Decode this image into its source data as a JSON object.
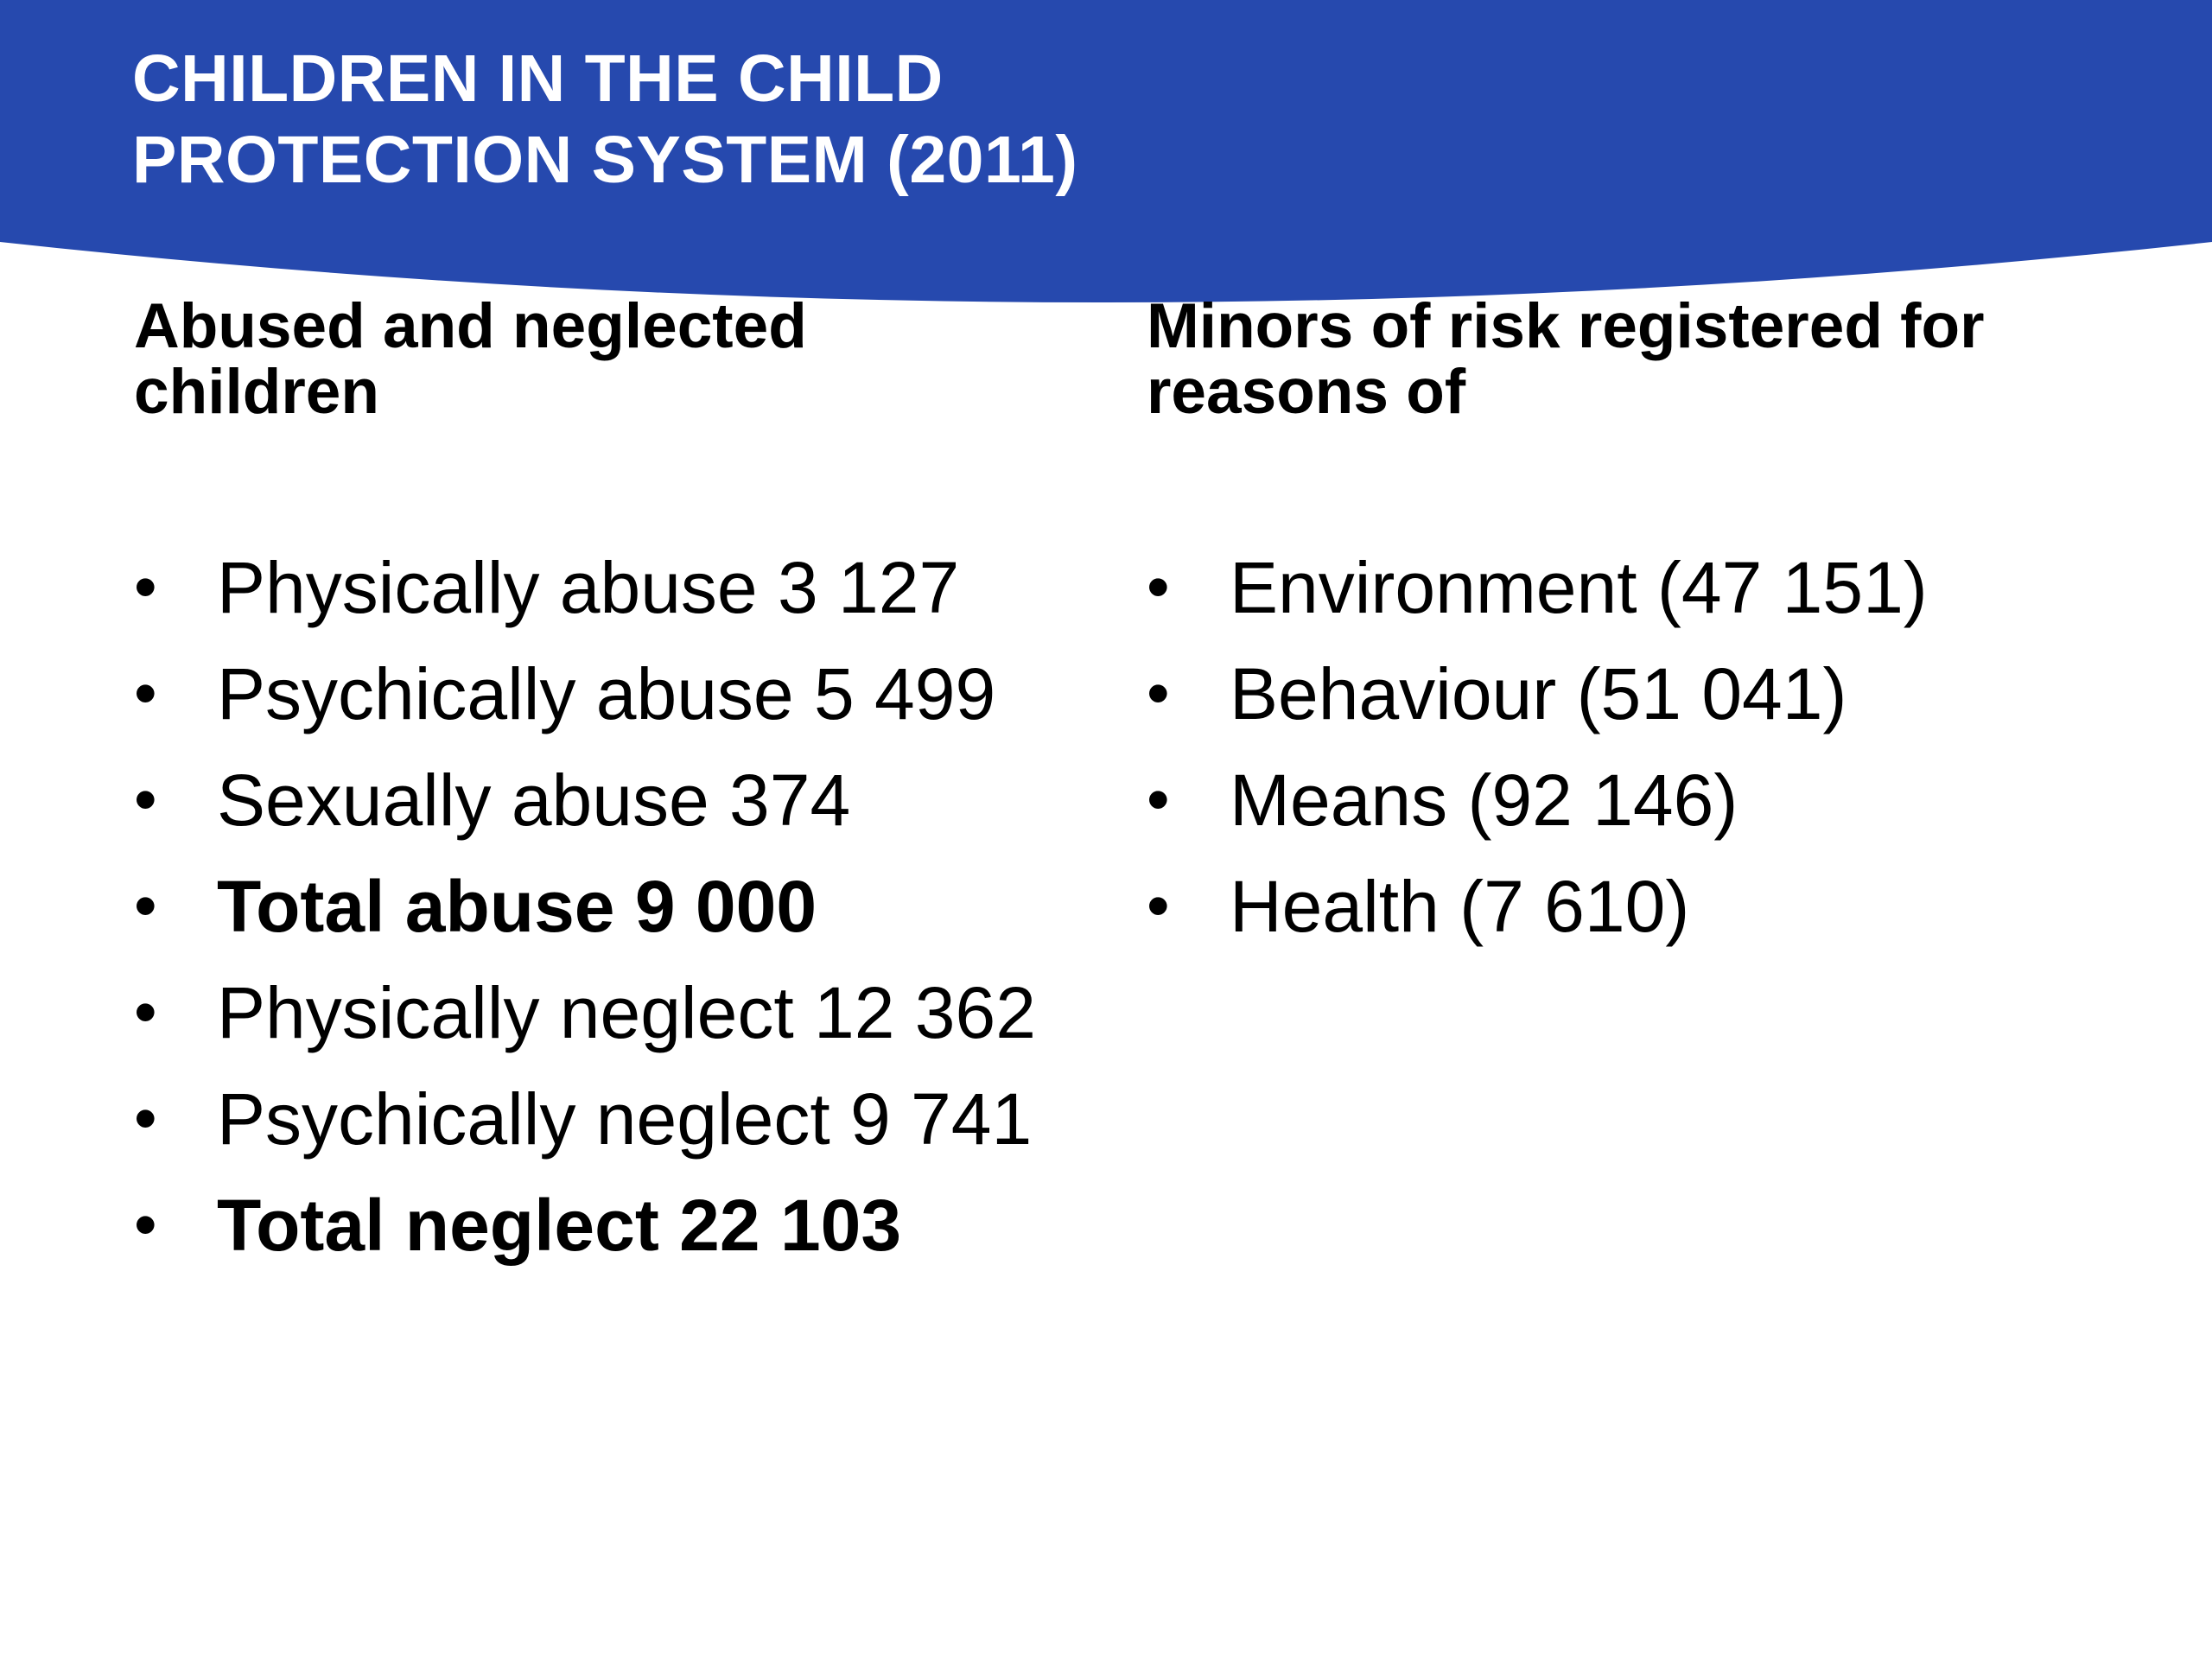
{
  "slide": {
    "title_lines": [
      "CHILDREN IN THE CHILD",
      "PROTECTION SYSTEM (2011)"
    ],
    "colors": {
      "header_band": "#2649AE",
      "title_text": "#ffffff",
      "body_text": "#000000",
      "background": "#ffffff"
    }
  },
  "left_column": {
    "heading_lines": [
      "Abused and neglected",
      "children"
    ],
    "items": [
      {
        "text": "Physically abuse 3 127",
        "bold": false
      },
      {
        "text": "Psychically abuse 5 499",
        "bold": false
      },
      {
        "text": "Sexually abuse 374",
        "bold": false
      },
      {
        "text": "Total abuse 9 000",
        "bold": true
      },
      {
        "text": "Physically neglect 12 362",
        "bold": false
      },
      {
        "text": "Psychically neglect 9 741",
        "bold": false
      },
      {
        "text": "Total neglect 22 103",
        "bold": true
      }
    ]
  },
  "right_column": {
    "heading_lines": [
      "Minors of risk registered for",
      "reasons of"
    ],
    "items": [
      {
        "text": "Environment (47 151)",
        "bold": false
      },
      {
        "text": "Behaviour (51 041)",
        "bold": false
      },
      {
        "text": "Means (92 146)",
        "bold": false
      },
      {
        "text": "Health (7 610)",
        "bold": false
      }
    ]
  },
  "bullet_glyph": "•"
}
